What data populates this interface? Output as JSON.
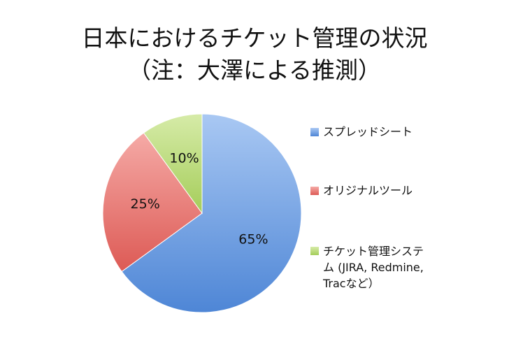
{
  "chart_data": {
    "type": "pie",
    "title": [
      "日本におけるチケット管理の状況",
      "（注：大澤による推測）"
    ],
    "series": [
      {
        "name": "スプレッドシート",
        "value": 65,
        "label": "65%",
        "color": "#6e9ee0"
      },
      {
        "name": "オリジナルツール",
        "value": 25,
        "label": "25%",
        "color": "#e87b78"
      },
      {
        "name": "チケット管理システム (JIRA, Redmine, Tracなど）",
        "value": 10,
        "label": "10%",
        "color": "#b9da77"
      }
    ],
    "legend_position": "right",
    "legend_lines": [
      "チケット管理システ",
      "ム (JIRA, Redmine,",
      "Tracなど）"
    ]
  }
}
